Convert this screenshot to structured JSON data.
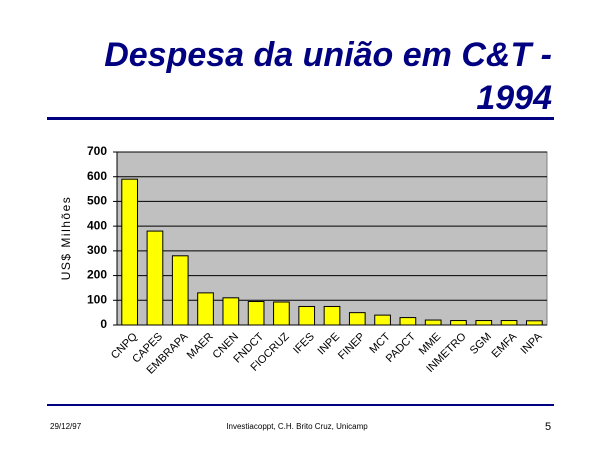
{
  "chart_data": {
    "type": "bar",
    "title": [
      "Despesa da união em C&T -",
      "1994"
    ],
    "y_label": "US$ Milhões",
    "categories": [
      "CNPQ",
      "CAPES",
      "EMBRAPA",
      "MAER",
      "CNEN",
      "FNDCT",
      "FIOCRUZ",
      "IFES",
      "INPE",
      "FINEP",
      "MCT",
      "PADCT",
      "MME",
      "INMETRO",
      "SGM",
      "EMFA",
      "INPA"
    ],
    "values": [
      590,
      380,
      280,
      130,
      110,
      95,
      93,
      75,
      75,
      50,
      40,
      30,
      20,
      18,
      18,
      18,
      17
    ],
    "color": "#ffff00",
    "ylim": [
      0,
      700
    ],
    "yticks": [
      0,
      100,
      200,
      300,
      400,
      500,
      600,
      700
    ],
    "grid": true
  },
  "footer": {
    "date": "29/12/97",
    "source": "Investiacoppt, C.H. Brito Cruz, Unicamp",
    "page": "5"
  }
}
